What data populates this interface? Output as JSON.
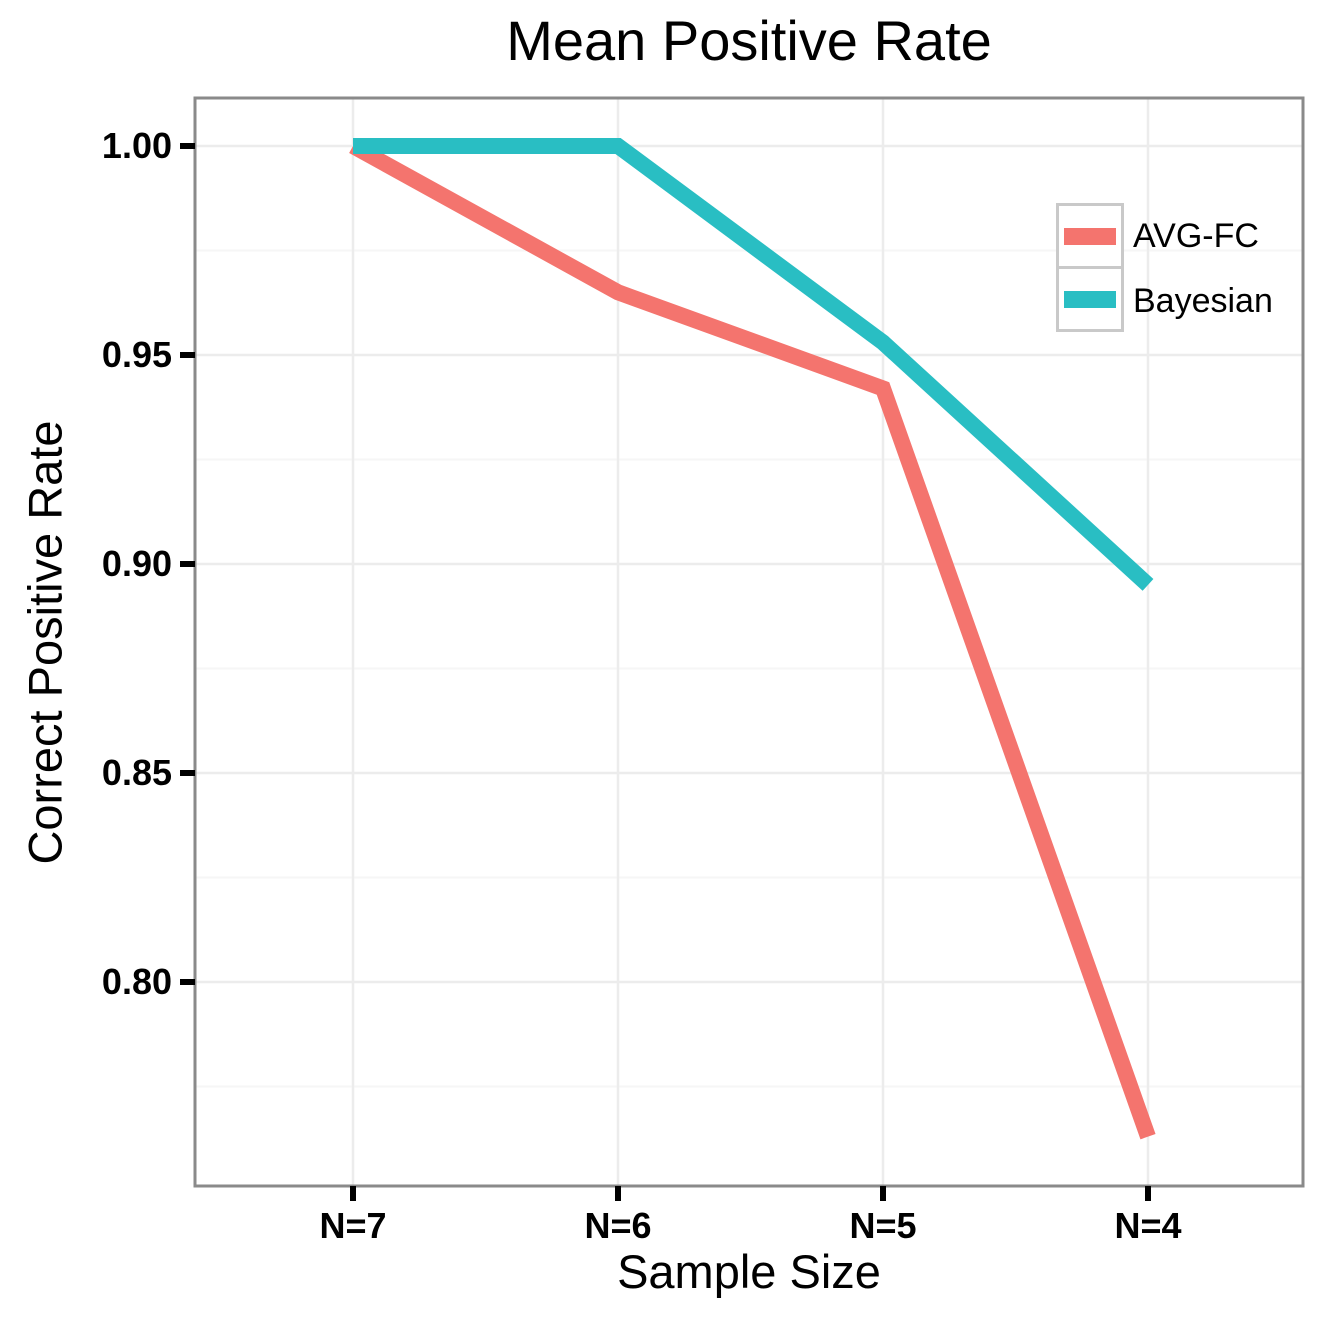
{
  "title": "Mean Positive Rate",
  "chart_data": {
    "type": "line",
    "title": "Mean Positive Rate",
    "xlabel": "Sample Size",
    "ylabel": "Correct Positive Rate",
    "categories": [
      "N=7",
      "N=6",
      "N=5",
      "N=4"
    ],
    "series": [
      {
        "name": "AVG-FC",
        "color": "#F4746E",
        "values": [
          1.0,
          0.965,
          0.942,
          0.763
        ]
      },
      {
        "name": "Bayesian",
        "color": "#29BEC3",
        "values": [
          1.0,
          1.0,
          0.953,
          0.895
        ]
      }
    ],
    "y_ticks": [
      1.0,
      0.95,
      0.9,
      0.85,
      0.8
    ],
    "y_tick_labels": [
      "1.00",
      "0.95",
      "0.90",
      "0.85",
      "0.80"
    ],
    "ylim": [
      0.7515,
      1.0125
    ],
    "grid": "horizontal major+minor, vertical major at categories",
    "legend_position": "upper-right"
  },
  "legend": {
    "items": [
      {
        "label": "AVG-FC",
        "color": "#F4746E"
      },
      {
        "label": "Bayesian",
        "color": "#29BEC3"
      }
    ]
  },
  "colors": {
    "avg_fc": "#F4746E",
    "bayesian": "#29BEC3",
    "panel_border": "#8A8A8A",
    "grid_major": "#ECECEC",
    "grid_minor": "#F6F6F6",
    "tick": "#000000",
    "text": "#000000",
    "background": "#FFFFFF"
  }
}
